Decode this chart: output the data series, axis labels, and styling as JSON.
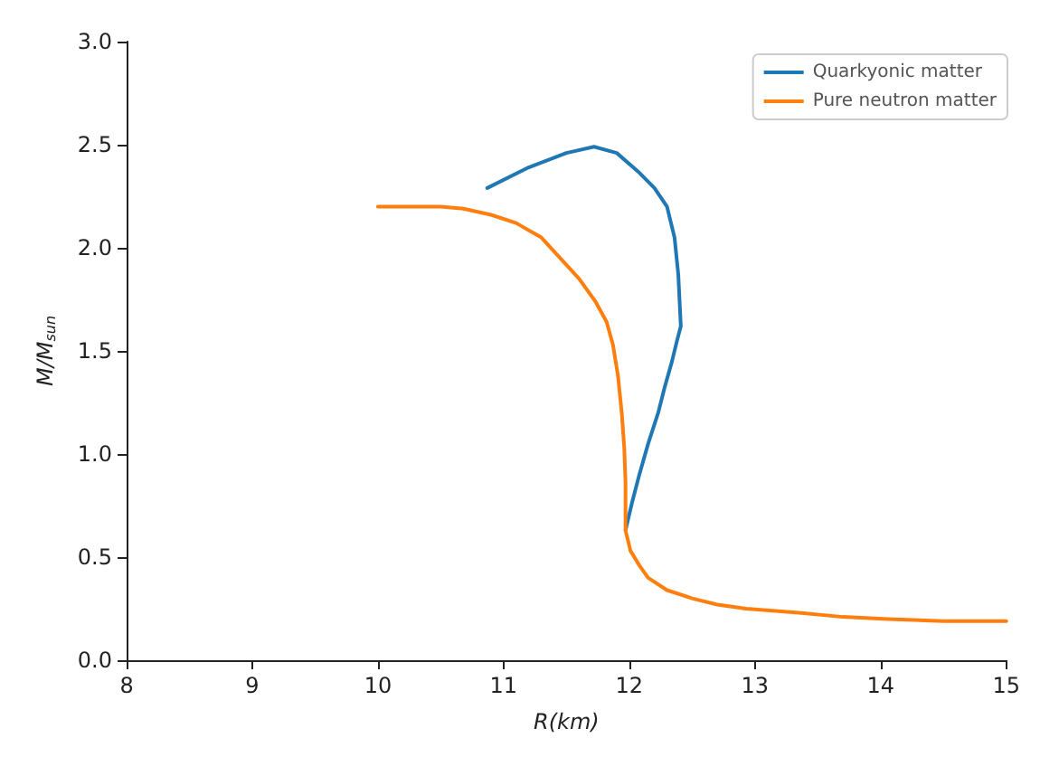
{
  "chart_data": {
    "type": "line",
    "xlabel": "R(km)",
    "ylabel": "M/M$_{sun}$",
    "xlim": [
      8,
      15
    ],
    "ylim": [
      0,
      3
    ],
    "xticks": [
      8,
      9,
      10,
      11,
      12,
      13,
      14,
      15
    ],
    "yticks": [
      {
        "value": 0,
        "label": "0.0"
      },
      0.5,
      {
        "value": 1,
        "label": "1.0"
      },
      1.5,
      {
        "value": 2,
        "label": "2.0"
      },
      2.5,
      {
        "value": 3,
        "label": "3.0"
      }
    ],
    "grid": false,
    "legend": "top right",
    "marker": "none",
    "line_style": "solid",
    "series": [
      {
        "name": "Quarkyonic matter",
        "color": "#1f77b4",
        "x": [
          10.87,
          11.2,
          11.5,
          11.72,
          11.9,
          12.07,
          12.2,
          12.3,
          12.36,
          12.39,
          12.41,
          12.38,
          12.34,
          12.28,
          12.23,
          12.15,
          12.08,
          12.02,
          11.97
        ],
        "values": [
          2.29,
          2.39,
          2.46,
          2.49,
          2.46,
          2.37,
          2.29,
          2.2,
          2.05,
          1.87,
          1.62,
          1.55,
          1.45,
          1.32,
          1.2,
          1.05,
          0.9,
          0.76,
          0.63
        ]
      },
      {
        "name": "Pure neutron matter",
        "color": "#ff7f0e",
        "x": [
          10,
          10.25,
          10.5,
          10.68,
          10.9,
          11.1,
          11.3,
          11.45,
          11.6,
          11.73,
          11.82,
          11.87,
          11.91,
          11.94,
          11.96,
          11.97,
          11.97,
          12.01,
          12.08,
          12.15,
          12.3,
          12.5,
          12.7,
          12.93,
          13.35,
          13.7,
          14.06,
          14.5,
          15
        ],
        "values": [
          2.2,
          2.2,
          2.2,
          2.19,
          2.16,
          2.12,
          2.05,
          1.95,
          1.85,
          1.74,
          1.64,
          1.53,
          1.38,
          1.2,
          1.03,
          0.86,
          0.63,
          0.53,
          0.46,
          0.4,
          0.34,
          0.3,
          0.27,
          0.25,
          0.23,
          0.21,
          0.2,
          0.19,
          0.19
        ]
      }
    ]
  }
}
